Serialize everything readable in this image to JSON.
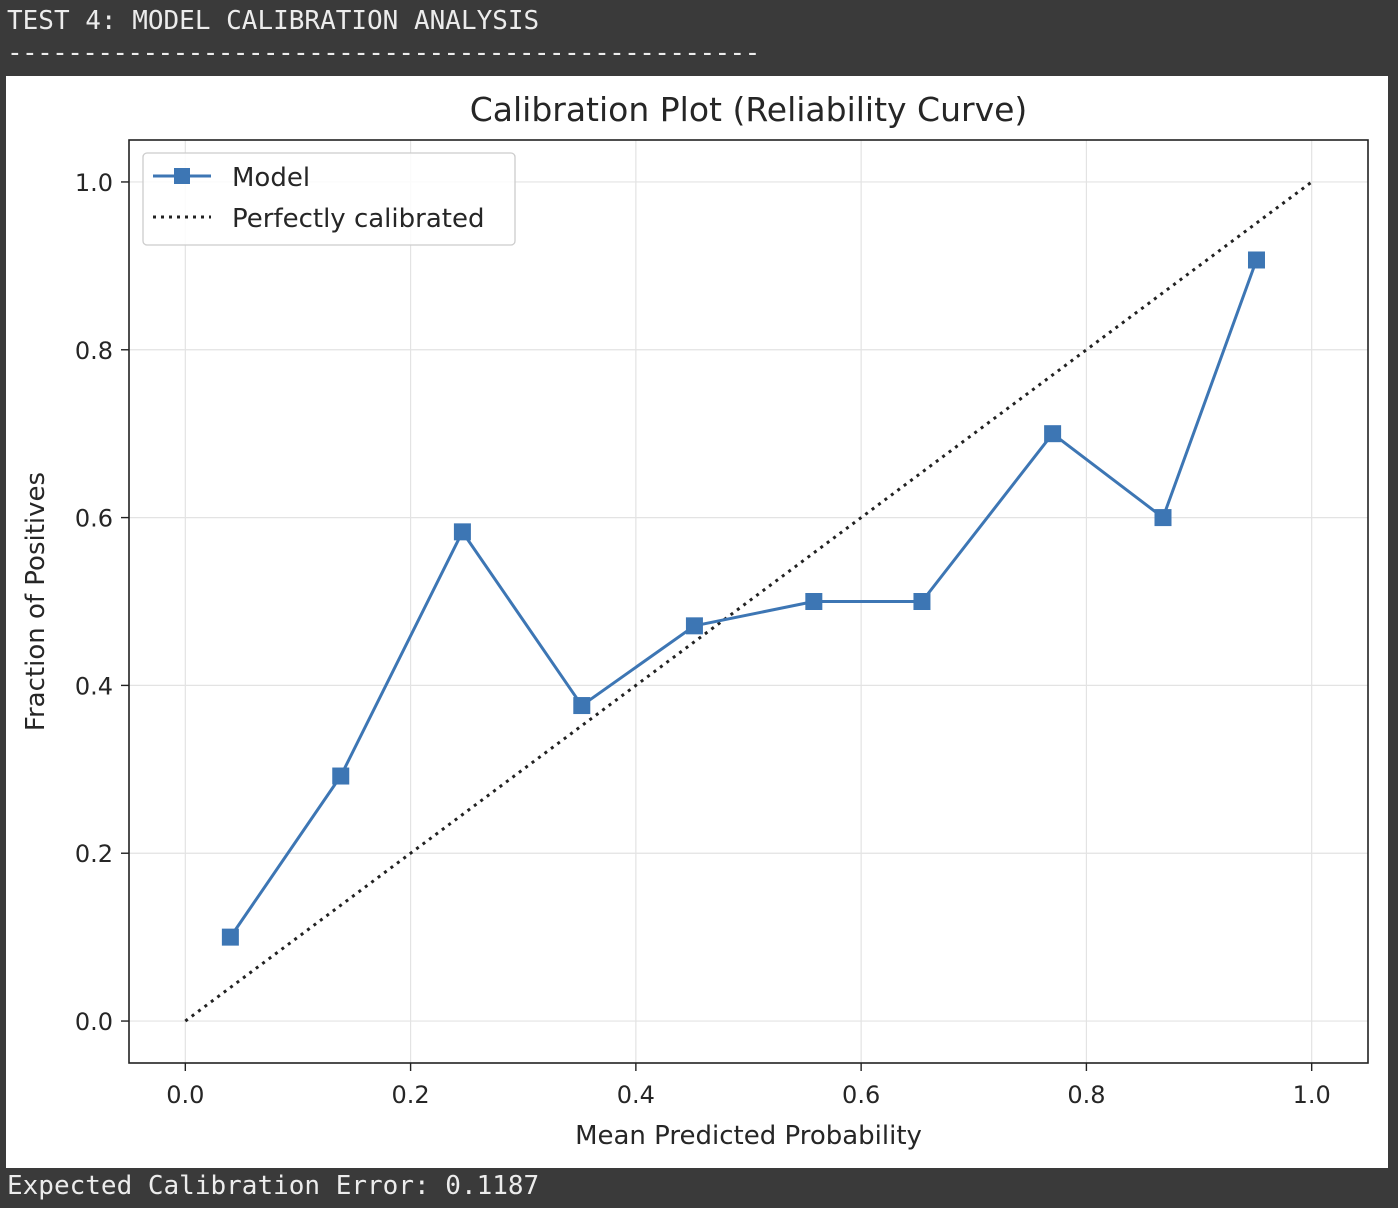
{
  "console": {
    "heading": "TEST 4: MODEL CALIBRATION ANALYSIS",
    "separator": "--------------------------------------------------",
    "result": "Expected Calibration Error: 0.1187"
  },
  "colors": {
    "background": "#3a3a3a",
    "figure": "#ffffff",
    "model_line": "#3d76b4",
    "reference_line": "#222222",
    "grid": "#e3e3e3"
  },
  "chart_data": {
    "type": "line",
    "title": "Calibration Plot (Reliability Curve)",
    "xlabel": "Mean Predicted Probability",
    "ylabel": "Fraction of Positives",
    "xlim": [
      -0.05,
      1.05
    ],
    "ylim": [
      -0.05,
      1.05
    ],
    "xticks": [
      0.0,
      0.2,
      0.4,
      0.6,
      0.8,
      1.0
    ],
    "yticks": [
      0.0,
      0.2,
      0.4,
      0.6,
      0.8,
      1.0
    ],
    "xtick_labels": [
      "0.0",
      "0.2",
      "0.4",
      "0.6",
      "0.8",
      "1.0"
    ],
    "ytick_labels": [
      "0.0",
      "0.2",
      "0.4",
      "0.6",
      "0.8",
      "1.0"
    ],
    "grid": true,
    "legend_position": "top-left",
    "series": [
      {
        "name": "Model",
        "marker": "square",
        "linestyle": "solid",
        "color": "#3d76b4",
        "x": [
          0.04,
          0.138,
          0.246,
          0.352,
          0.452,
          0.558,
          0.654,
          0.77,
          0.868,
          0.951
        ],
        "y": [
          0.1,
          0.292,
          0.583,
          0.376,
          0.471,
          0.5,
          0.5,
          0.7,
          0.6,
          0.907
        ]
      },
      {
        "name": "Perfectly calibrated",
        "linestyle": "dotted",
        "color": "#222222",
        "x": [
          0,
          1
        ],
        "y": [
          0,
          1
        ]
      }
    ]
  }
}
